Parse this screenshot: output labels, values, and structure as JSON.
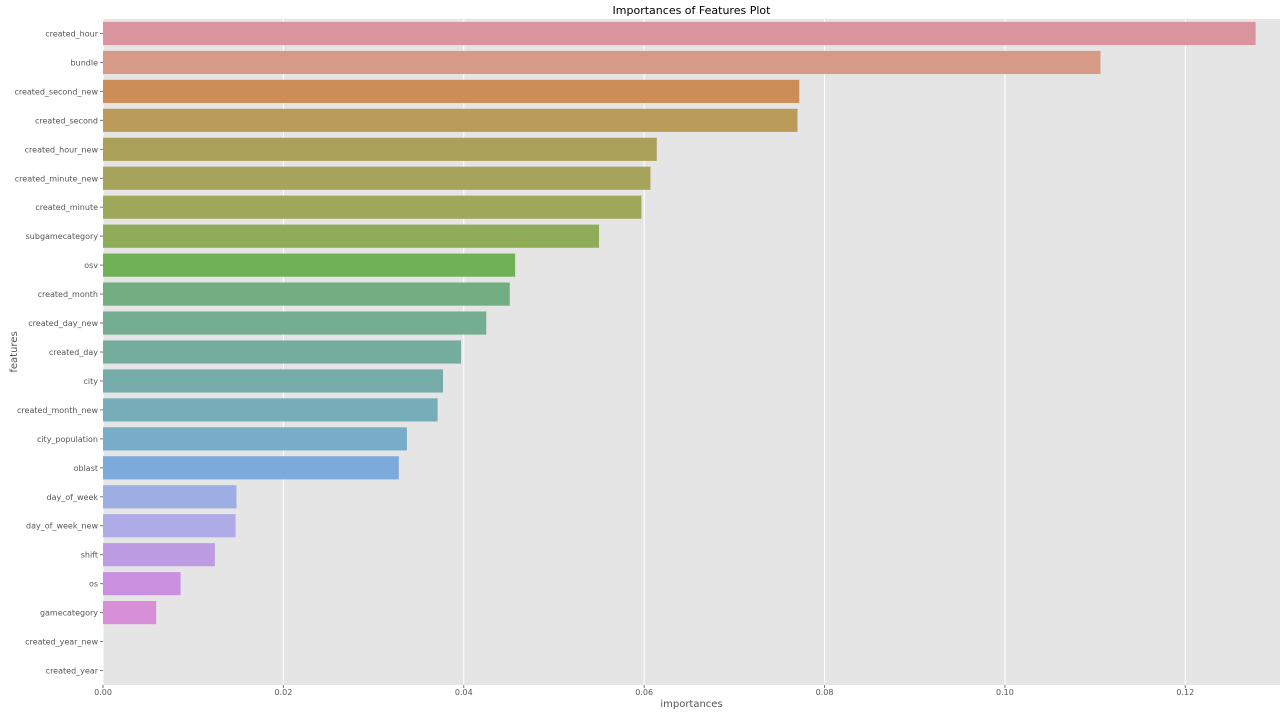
{
  "chart_data": {
    "type": "bar",
    "orientation": "horizontal",
    "title": "Importances of Features Plot",
    "xlabel": "importances",
    "ylabel": "features",
    "xlim": [
      0,
      0.1305
    ],
    "xticks": [
      0.0,
      0.02,
      0.04,
      0.06,
      0.08,
      0.1,
      0.12
    ],
    "xtick_labels": [
      "0.00",
      "0.02",
      "0.04",
      "0.06",
      "0.08",
      "0.10",
      "0.12"
    ],
    "grid": true,
    "background": "#e5e5e5",
    "categories": [
      "created_hour",
      "bundle",
      "created_second_new",
      "created_second",
      "created_hour_new",
      "created_minute_new",
      "created_minute",
      "subgamecategory",
      "osv",
      "created_month",
      "created_day_new",
      "created_day",
      "city",
      "created_month_new",
      "city_population",
      "oblast",
      "day_of_week",
      "day_of_week_new",
      "shift",
      "os",
      "gamecategory",
      "created_year_new",
      "created_year"
    ],
    "values": [
      0.1278,
      0.1106,
      0.0772,
      0.077,
      0.0614,
      0.0607,
      0.0597,
      0.055,
      0.0457,
      0.0451,
      0.0425,
      0.0397,
      0.0377,
      0.0371,
      0.0337,
      0.0328,
      0.0148,
      0.0147,
      0.0124,
      0.0086,
      0.0059,
      0.0,
      0.0
    ],
    "colors": [
      "#d9949e",
      "#d69a87",
      "#cc8d57",
      "#ba9b5a",
      "#aba059",
      "#a6a45a",
      "#9ea85b",
      "#8fac59",
      "#70b158",
      "#73ad82",
      "#74ad90",
      "#75ad9c",
      "#75acaa",
      "#76adb9",
      "#78adc8",
      "#7caadb",
      "#9daee3",
      "#aeabe6",
      "#be9ce4",
      "#ca90e0",
      "#d78fd8",
      "#dc8ec8",
      "#dc8ec0"
    ]
  }
}
